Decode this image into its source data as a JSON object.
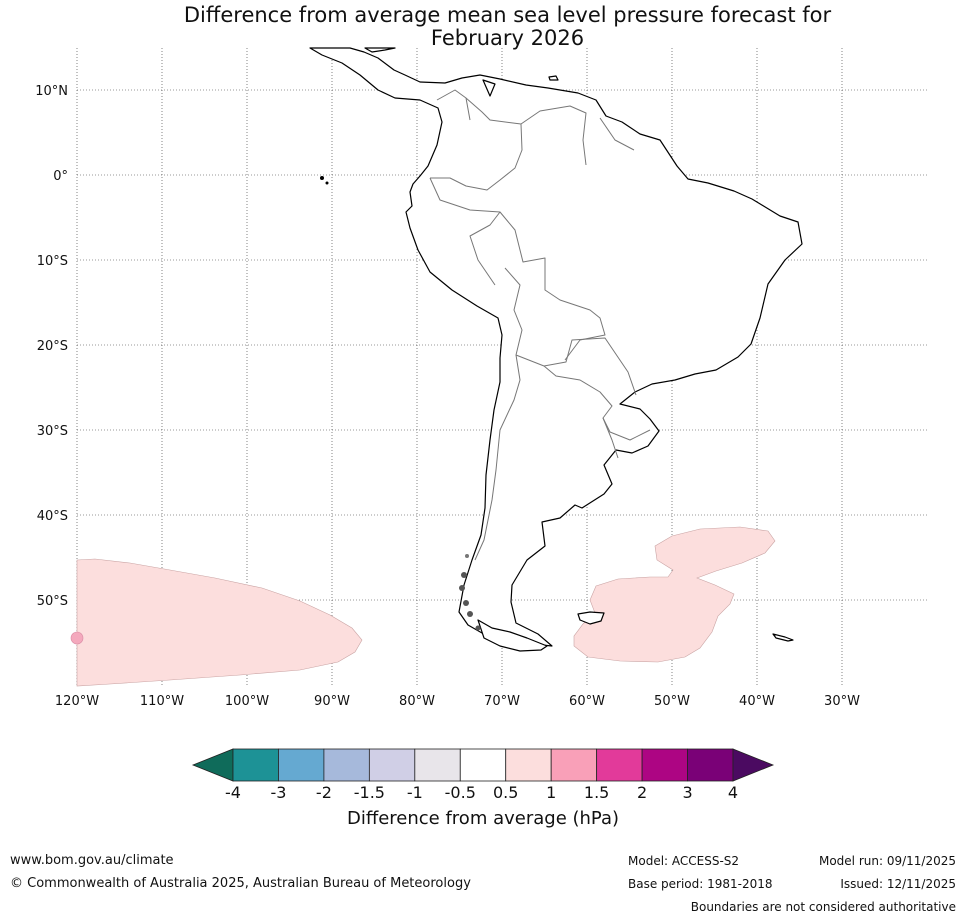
{
  "header": {
    "title_line1": "Difference from average mean sea level pressure forecast for",
    "title_line2": "February 2026"
  },
  "map": {
    "lat_labels": [
      "10°N",
      "0°",
      "10°S",
      "20°S",
      "30°S",
      "40°S",
      "50°S"
    ],
    "lon_labels": [
      "120°W",
      "110°W",
      "100°W",
      "90°W",
      "80°W",
      "70°W",
      "60°W",
      "50°W",
      "40°W",
      "30°W"
    ],
    "anomaly_regions": [
      {
        "name": "south-pacific-positive-anomaly",
        "category": "0.5 to 1"
      },
      {
        "name": "south-atlantic-positive-anomaly",
        "category": "0.5 to 1"
      }
    ]
  },
  "colorbar": {
    "title": "Difference from average (hPa)",
    "tick_labels": [
      "-4",
      "-3",
      "-2",
      "-1.5",
      "-1",
      "-0.5",
      "0.5",
      "1",
      "1.5",
      "2",
      "3",
      "4"
    ],
    "low_extend_color": "#0f6b5a",
    "high_extend_color": "#4b0a61",
    "bin_colors": [
      "#1d9296",
      "#65a9d1",
      "#a6b9db",
      "#d0cfe6",
      "#e8e5ea",
      "#ffffff",
      "#fcdedd",
      "#f9a0b8",
      "#e23a9a",
      "#ad0583",
      "#7a0177"
    ]
  },
  "footer": {
    "website": "www.bom.gov.au/climate",
    "copyright": "© Commonwealth of Australia 2025, Australian Bureau of Meteorology",
    "model": "Model: ACCESS-S2",
    "base_period": "Base period: 1981-2018",
    "model_run": "Model run: 09/11/2025",
    "issued": "Issued: 12/11/2025",
    "disclaimer": "Boundaries are not considered authoritative"
  }
}
